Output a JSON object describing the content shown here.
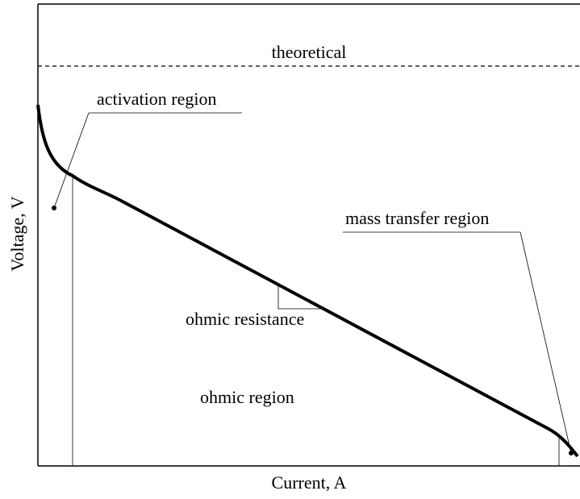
{
  "labels": {
    "theoretical": "theoretical",
    "activation": "activation region",
    "mass_transfer": "mass transfer region",
    "ohmic_resistance": "ohmic resistance",
    "ohmic_region": "ohmic region"
  },
  "axes": {
    "y_label": "Voltage, V",
    "x_label": "Current, A"
  }
}
